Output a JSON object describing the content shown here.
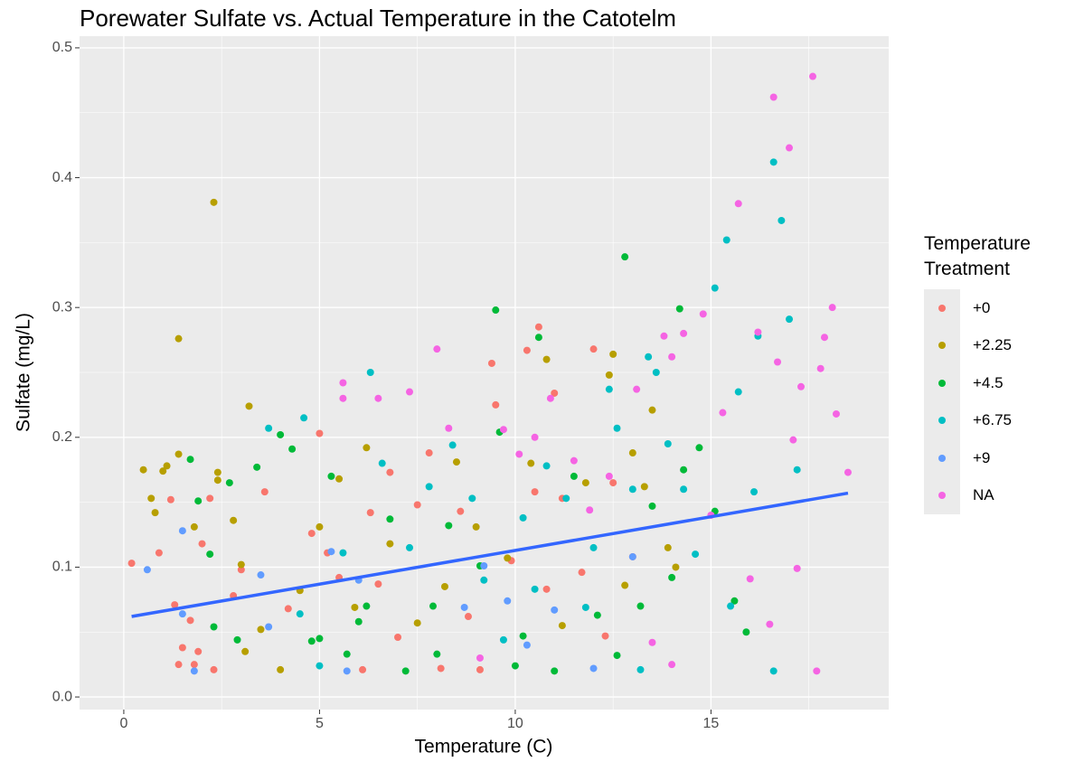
{
  "chart_data": {
    "type": "scatter",
    "title": "Porewater Sulfate vs. Actual Temperature in the Catotelm",
    "x_label": "Temperature (C)",
    "y_label": "Sulfate (mg/L)",
    "legend_title": "Temperature\nTreatment",
    "legend_position": "right",
    "grid": true,
    "xlim": [
      -1.13,
      19.54
    ],
    "ylim": [
      -0.0097,
      0.509
    ],
    "xticks": [
      0,
      5,
      10,
      15
    ],
    "yticks": [
      {
        "value": 0,
        "label": "0.0"
      },
      0.1,
      0.2,
      0.3,
      0.4,
      0.5
    ],
    "x_minor_grid": [
      2.5,
      7.5,
      12.5,
      17.5
    ],
    "y_minor_grid": [
      0.05,
      0.15,
      0.25,
      0.35,
      0.45
    ],
    "series": [
      {
        "name": "+0",
        "color": "#F8766D",
        "x": [
          0.2,
          0.9,
          1.2,
          1.3,
          1.4,
          1.5,
          1.7,
          1.8,
          1.9,
          2.0,
          2.2,
          2.3,
          2.8,
          3.0,
          3.6,
          4.2,
          4.8,
          5.0,
          5.2,
          5.5,
          6.1,
          6.3,
          6.8,
          7.5,
          7.8,
          8.1,
          8.6,
          9.1,
          9.4,
          9.5,
          10.3,
          10.6,
          10.8,
          11.0,
          11.2,
          11.7,
          12.0,
          12.3,
          12.5,
          13.0,
          7.0,
          8.8,
          9.9,
          10.5,
          6.5
        ],
        "values": [
          0.103,
          0.111,
          0.152,
          0.071,
          0.025,
          0.038,
          0.059,
          0.025,
          0.035,
          0.118,
          0.153,
          0.021,
          0.078,
          0.098,
          0.158,
          0.068,
          0.126,
          0.203,
          0.111,
          0.092,
          0.021,
          0.142,
          0.173,
          0.148,
          0.188,
          0.022,
          0.143,
          0.021,
          0.257,
          0.225,
          0.267,
          0.285,
          0.083,
          0.234,
          0.153,
          0.096,
          0.268,
          0.047,
          0.165,
          0.108,
          0.046,
          0.062,
          0.105,
          0.158,
          0.087
        ]
      },
      {
        "name": "+2.25",
        "color": "#B79F00",
        "x": [
          0.5,
          0.7,
          0.8,
          1.0,
          1.1,
          1.4,
          1.4,
          1.8,
          2.3,
          2.4,
          2.4,
          2.8,
          3.0,
          3.2,
          3.5,
          4.0,
          4.5,
          5.0,
          5.5,
          6.2,
          6.8,
          7.5,
          8.2,
          9.0,
          9.8,
          10.4,
          10.8,
          11.2,
          11.8,
          12.4,
          12.5,
          13.0,
          13.3,
          13.5,
          13.9,
          14.1,
          3.1,
          5.9,
          8.5,
          12.8
        ],
        "values": [
          0.175,
          0.153,
          0.142,
          0.174,
          0.178,
          0.276,
          0.187,
          0.131,
          0.381,
          0.173,
          0.167,
          0.136,
          0.102,
          0.224,
          0.052,
          0.021,
          0.082,
          0.131,
          0.168,
          0.192,
          0.118,
          0.057,
          0.085,
          0.131,
          0.107,
          0.18,
          0.26,
          0.055,
          0.165,
          0.248,
          0.264,
          0.188,
          0.162,
          0.221,
          0.115,
          0.1,
          0.035,
          0.069,
          0.181,
          0.086
        ]
      },
      {
        "name": "+4.5",
        "color": "#00BA38",
        "x": [
          1.7,
          1.9,
          2.2,
          2.3,
          2.7,
          2.9,
          3.4,
          4.0,
          4.3,
          4.8,
          5.0,
          5.3,
          5.7,
          6.2,
          6.8,
          7.2,
          7.9,
          8.3,
          9.1,
          9.5,
          9.6,
          10.0,
          10.6,
          11.0,
          11.5,
          12.1,
          12.6,
          12.8,
          13.2,
          13.5,
          14.0,
          14.2,
          14.3,
          14.7,
          15.1,
          15.6,
          15.9,
          6.0,
          8.0,
          10.2
        ],
        "values": [
          0.183,
          0.151,
          0.11,
          0.054,
          0.165,
          0.044,
          0.177,
          0.202,
          0.191,
          0.043,
          0.045,
          0.17,
          0.033,
          0.07,
          0.137,
          0.02,
          0.07,
          0.132,
          0.101,
          0.298,
          0.204,
          0.024,
          0.277,
          0.02,
          0.17,
          0.063,
          0.032,
          0.339,
          0.07,
          0.147,
          0.092,
          0.299,
          0.175,
          0.192,
          0.143,
          0.074,
          0.05,
          0.058,
          0.033,
          0.047
        ]
      },
      {
        "name": "+6.75",
        "color": "#00BFC4",
        "x": [
          3.7,
          4.5,
          5.0,
          5.6,
          6.6,
          6.3,
          7.3,
          7.8,
          8.4,
          8.9,
          9.2,
          9.7,
          10.2,
          10.8,
          11.3,
          11.8,
          12.4,
          12.6,
          13.0,
          13.4,
          13.6,
          13.9,
          14.3,
          14.6,
          15.1,
          15.4,
          15.7,
          16.1,
          16.2,
          16.6,
          16.8,
          16.6,
          17.0,
          17.2,
          15.5,
          13.2,
          12.0,
          10.5,
          4.6
        ],
        "values": [
          0.207,
          0.064,
          0.024,
          0.111,
          0.18,
          0.25,
          0.115,
          0.162,
          0.194,
          0.153,
          0.09,
          0.044,
          0.138,
          0.178,
          0.153,
          0.069,
          0.237,
          0.207,
          0.16,
          0.262,
          0.25,
          0.195,
          0.16,
          0.11,
          0.315,
          0.352,
          0.235,
          0.158,
          0.278,
          0.412,
          0.367,
          0.02,
          0.291,
          0.175,
          0.07,
          0.021,
          0.115,
          0.083,
          0.215
        ]
      },
      {
        "name": "+9",
        "color": "#619CFF",
        "x": [
          0.6,
          1.5,
          1.5,
          1.8,
          3.5,
          3.7,
          5.3,
          5.7,
          6.0,
          8.7,
          9.2,
          9.8,
          10.3,
          11.0,
          12.0,
          13.0
        ],
        "values": [
          0.098,
          0.128,
          0.064,
          0.02,
          0.094,
          0.054,
          0.112,
          0.02,
          0.09,
          0.069,
          0.101,
          0.074,
          0.04,
          0.067,
          0.022,
          0.108
        ]
      },
      {
        "name": "NA",
        "color": "#F564E3",
        "x": [
          5.6,
          5.6,
          6.5,
          7.3,
          8.0,
          8.3,
          9.1,
          9.7,
          10.1,
          10.5,
          10.9,
          11.5,
          12.4,
          13.1,
          13.8,
          14.0,
          14.3,
          14.8,
          15.3,
          15.7,
          16.0,
          16.2,
          16.6,
          16.7,
          17.0,
          17.1,
          17.3,
          17.6,
          17.7,
          17.8,
          17.9,
          18.1,
          18.2,
          18.5,
          17.2,
          16.5,
          15.0,
          14.0,
          13.5,
          11.9
        ],
        "values": [
          0.242,
          0.23,
          0.23,
          0.235,
          0.268,
          0.207,
          0.03,
          0.206,
          0.187,
          0.2,
          0.23,
          0.182,
          0.17,
          0.237,
          0.278,
          0.262,
          0.28,
          0.295,
          0.219,
          0.38,
          0.091,
          0.281,
          0.462,
          0.258,
          0.423,
          0.198,
          0.239,
          0.478,
          0.02,
          0.253,
          0.277,
          0.3,
          0.218,
          0.173,
          0.099,
          0.056,
          0.14,
          0.025,
          0.042,
          0.144
        ]
      }
    ],
    "trend_line": {
      "color": "#3366FF",
      "x": [
        0.2,
        18.5
      ],
      "values": [
        0.062,
        0.157
      ]
    }
  }
}
